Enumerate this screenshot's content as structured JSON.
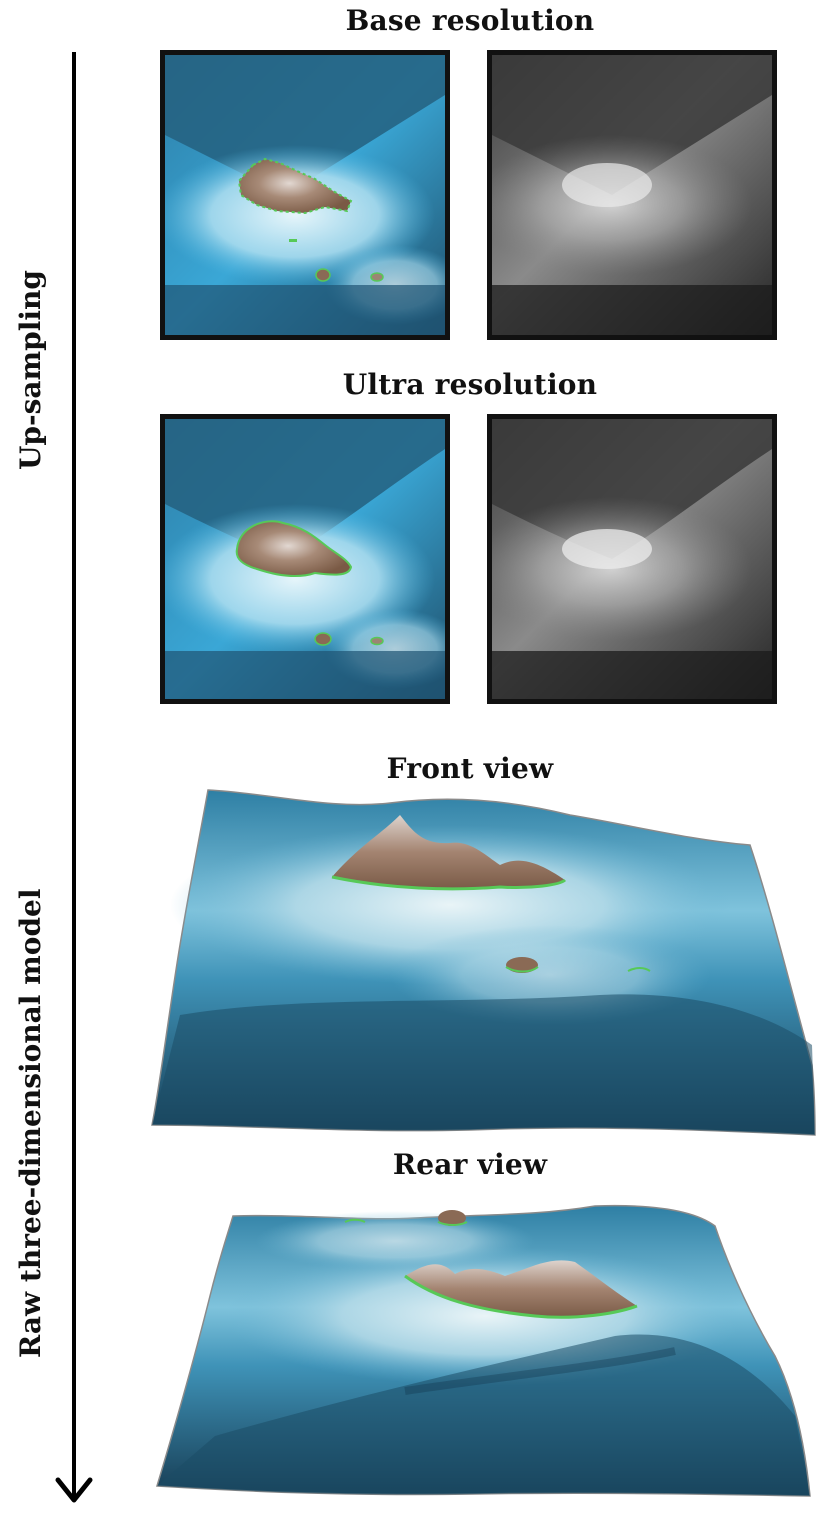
{
  "titles": {
    "base": "Base resolution",
    "ultra": "Ultra resolution",
    "front": "Front view",
    "rear": "Rear view"
  },
  "side_labels": {
    "upsampling": "Up-sampling",
    "raw_model": "Raw three-dimensional model"
  },
  "colors": {
    "deep_water": "#1f5878",
    "shallow_water": "#4fb6e0",
    "shelf": "#bfe6f3",
    "land": "#8a6a55",
    "peak": "#d8cfc8",
    "coast": "#57c957"
  }
}
